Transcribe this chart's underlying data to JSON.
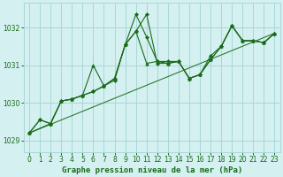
{
  "bg_color": "#d4f0f0",
  "grid_color": "#a8d8d8",
  "line_color": "#1a6b1a",
  "title": "Graphe pression niveau de la mer (hPa)",
  "ylim": [
    1028.7,
    1032.65
  ],
  "xlim": [
    -0.5,
    23.5
  ],
  "yticks": [
    1029,
    1030,
    1031,
    1032
  ],
  "xticks": [
    0,
    1,
    2,
    3,
    4,
    5,
    6,
    7,
    8,
    9,
    10,
    11,
    12,
    13,
    14,
    15,
    16,
    17,
    18,
    19,
    20,
    21,
    22,
    23
  ],
  "series1_x": [
    0,
    1,
    2,
    3,
    4,
    5,
    6,
    7,
    8,
    9,
    10,
    11,
    12,
    13,
    14,
    15,
    16,
    17,
    18,
    19,
    20,
    21,
    22,
    23
  ],
  "series1_y": [
    1029.2,
    1029.55,
    1029.45,
    1030.05,
    1030.1,
    1030.2,
    1030.3,
    1030.45,
    1030.65,
    1031.55,
    1031.9,
    1032.35,
    1031.05,
    1031.05,
    1031.1,
    1030.65,
    1030.75,
    1031.15,
    1031.5,
    1032.05,
    1031.65,
    1031.65,
    1031.6,
    1031.85
  ],
  "series2_x": [
    0,
    1,
    2,
    3,
    4,
    5,
    6,
    7,
    8,
    9,
    10,
    11,
    12,
    13,
    14,
    15,
    16,
    17,
    18,
    19,
    20,
    21,
    22,
    23
  ],
  "series2_y": [
    1029.2,
    1029.55,
    1029.45,
    1030.05,
    1030.1,
    1030.2,
    1030.3,
    1030.45,
    1030.6,
    1031.55,
    1032.35,
    1031.75,
    1031.1,
    1031.1,
    1031.1,
    1030.65,
    1030.75,
    1031.25,
    1031.5,
    1032.05,
    1031.65,
    1031.65,
    1031.6,
    1031.85
  ],
  "series3_x": [
    0,
    2,
    3,
    4,
    5,
    6,
    7,
    8,
    9,
    10,
    11,
    12,
    13,
    14,
    15,
    16,
    17,
    18,
    19,
    20,
    21,
    22,
    23
  ],
  "series3_y": [
    1029.2,
    1029.45,
    1030.05,
    1030.1,
    1030.2,
    1031.0,
    1030.45,
    1030.65,
    1031.55,
    1031.9,
    1031.05,
    1031.1,
    1031.05,
    1031.1,
    1030.65,
    1030.75,
    1031.15,
    1031.5,
    1032.05,
    1031.65,
    1031.65,
    1031.6,
    1031.85
  ],
  "series4_x": [
    0,
    23
  ],
  "series4_y": [
    1029.2,
    1031.85
  ]
}
